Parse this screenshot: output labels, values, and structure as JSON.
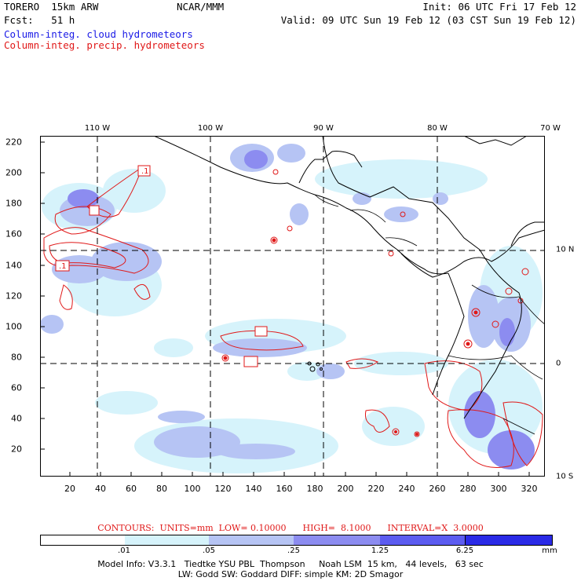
{
  "header": {
    "model": "TORERO  15km ARW",
    "org": "NCAR/MMM",
    "init": "Init: 06 UTC Fri 17 Feb 12",
    "fcst": "Fcst:   51 h",
    "valid": "Valid: 09 UTC Sun 19 Feb 12 (03 CST Sun 19 Feb 12)"
  },
  "legend": {
    "cloud": "Column-integ. cloud hydrometeors",
    "precip": "Column-integ. precip. hydrometeors",
    "cloud_color": "#1a1ae6",
    "precip_color": "#e01818"
  },
  "axes": {
    "top_lon": [
      "110 W",
      "100 W",
      "90 W",
      "80 W",
      "70 W"
    ],
    "right_lat": [
      "10 N",
      "0",
      "10 S"
    ],
    "x_ticks": [
      "20",
      "40",
      "60",
      "80",
      "100",
      "120",
      "140",
      "160",
      "180",
      "200",
      "220",
      "240",
      "260",
      "280",
      "300",
      "320"
    ],
    "y_ticks": [
      "220",
      "200",
      "180",
      "160",
      "140",
      "120",
      "100",
      "80",
      "60",
      "40",
      "20"
    ]
  },
  "map_labels": [
    ".1",
    ".1"
  ],
  "colorbar": {
    "labels": [
      ".01",
      ".05",
      ".25",
      "1.25",
      "6.25",
      "mm"
    ],
    "colors": [
      "#ffffff",
      "#d6f3fb",
      "#b6c4f4",
      "#8c8cf0",
      "#5c5cf0",
      "#2a2ae6"
    ]
  },
  "contour_info": "CONTOURS:  UNITS=mm  LOW= 0.10000      HIGH=  8.1000      INTERVAL=X  3.0000",
  "model_info": {
    "line1": "Model Info: V3.3.1   Tiedtke YSU PBL  Thompson     Noah LSM  15 km,   44 levels,   63 sec",
    "line2": "LW: Godd SW: Goddard DIFF: simple KM: 2D Smagor"
  }
}
